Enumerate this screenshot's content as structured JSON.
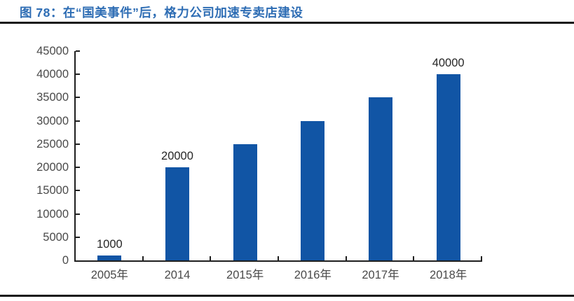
{
  "header": {
    "title": "图 78：在“国美事件”后，格力公司加速专卖店建设"
  },
  "colors": {
    "title": "#2E6DB4",
    "bar": "#1155A5",
    "axis": "#1f1f1f",
    "tick_label": "#4a4a4a",
    "value_label": "#262626",
    "divider": "#161616"
  },
  "chart_data": {
    "type": "bar",
    "title": "图 78：在“国美事件”后，格力公司加速专卖店建设",
    "categories": [
      "2005年",
      "2014",
      "2015年",
      "2016年",
      "2017年",
      "2018年"
    ],
    "values": [
      1000,
      20000,
      25000,
      30000,
      35000,
      40000
    ],
    "value_labels": [
      "1000",
      "20000",
      "",
      "",
      "",
      "40000"
    ],
    "yticks": [
      0,
      5000,
      10000,
      15000,
      20000,
      25000,
      30000,
      35000,
      40000,
      45000
    ],
    "ylim": [
      0,
      45000
    ],
    "xlabel": "",
    "ylabel": "",
    "grid": "off",
    "legend": "none"
  }
}
